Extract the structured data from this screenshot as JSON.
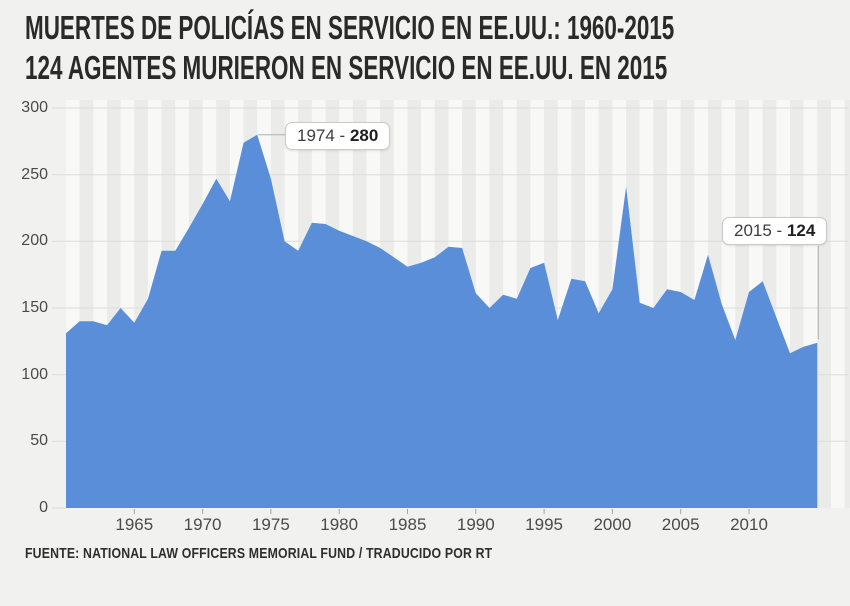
{
  "header": {
    "title_line1": "MUERTES DE POLICÍAS EN SERVICIO EN EE.UU.: 1960-2015",
    "title_line2": "124 AGENTES MURIERON EN SERVICIO EN EE.UU. EN 2015"
  },
  "footer": {
    "source": "FUENTE: NATIONAL LAW OFFICERS MEMORIAL FUND / TRADUCIDO POR RT"
  },
  "chart_data": {
    "type": "area",
    "title": "MUERTES DE POLICÍAS EN SERVICIO EN EE.UU.: 1960-2015",
    "subtitle": "124 AGENTES MURIERON EN SERVICIO EN EE.UU. EN 2015",
    "xlabel": "",
    "ylabel": "",
    "x": [
      1960,
      1961,
      1962,
      1963,
      1964,
      1965,
      1966,
      1967,
      1968,
      1969,
      1970,
      1971,
      1972,
      1973,
      1974,
      1975,
      1976,
      1977,
      1978,
      1979,
      1980,
      1981,
      1982,
      1983,
      1984,
      1985,
      1986,
      1987,
      1988,
      1989,
      1990,
      1991,
      1992,
      1993,
      1994,
      1995,
      1996,
      1997,
      1998,
      1999,
      2000,
      2001,
      2002,
      2003,
      2004,
      2005,
      2006,
      2007,
      2008,
      2009,
      2010,
      2011,
      2012,
      2013,
      2014,
      2015
    ],
    "values": [
      131,
      140,
      140,
      137,
      150,
      139,
      157,
      193,
      193,
      210,
      228,
      247,
      230,
      274,
      280,
      247,
      200,
      193,
      214,
      213,
      208,
      204,
      200,
      195,
      188,
      181,
      184,
      188,
      196,
      195,
      161,
      150,
      160,
      157,
      180,
      184,
      141,
      172,
      170,
      146,
      164,
      241,
      154,
      150,
      164,
      162,
      156,
      190,
      153,
      126,
      162,
      170,
      143,
      116,
      121,
      124
    ],
    "ylim": [
      0,
      300
    ],
    "yticks": [
      0,
      50,
      100,
      150,
      200,
      250,
      300
    ],
    "xticks": [
      1965,
      1970,
      1975,
      1980,
      1985,
      1990,
      1995,
      2000,
      2005,
      2010
    ],
    "grid": "horizontal",
    "legend": "none",
    "background_stripes": "vertical-yearly",
    "annotations": [
      {
        "target_year": 1974,
        "target_value": 280,
        "label_prefix": "1974 - ",
        "value": "280"
      },
      {
        "target_year": 2015,
        "target_value": 124,
        "label_prefix": "2015 - ",
        "value": "124"
      }
    ],
    "colors": {
      "area": "#5b8ed8",
      "background": "#f1f1ef",
      "stripe_light": "#f8f8f6",
      "stripe_dark": "#ebebe9",
      "gridline": "#dcdcda",
      "tick": "#a5a5a5",
      "axis_text": "#4b4b4b",
      "title_text": "#2a2a2a",
      "annotation_border": "#c9c9c9",
      "annotation_bg": "#ffffff",
      "pointer_line": "#b0b0b0"
    }
  }
}
